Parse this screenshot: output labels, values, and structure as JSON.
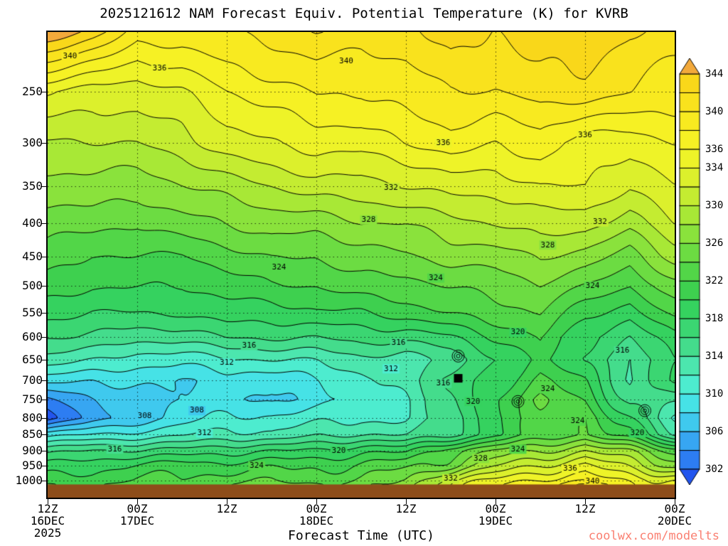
{
  "title": "2025121612 NAM Forecast Equiv. Potential Temperature (K) for KVRB",
  "watermark": {
    "text": "coolwx.com/modelts",
    "color": "#fa8072"
  },
  "axes": {
    "x_title": "Forecast Time (UTC)",
    "x_ticks": [
      {
        "z": "12Z",
        "date": "16DEC",
        "year": "2025"
      },
      {
        "z": "00Z",
        "date": "17DEC"
      },
      {
        "z": "12Z"
      },
      {
        "z": "00Z",
        "date": "18DEC"
      },
      {
        "z": "12Z"
      },
      {
        "z": "00Z",
        "date": "19DEC"
      },
      {
        "z": "12Z"
      },
      {
        "z": "00Z",
        "date": "20DEC"
      }
    ],
    "y_ticks": [
      250,
      300,
      350,
      400,
      450,
      500,
      550,
      600,
      650,
      700,
      750,
      800,
      850,
      900,
      950,
      1000
    ]
  },
  "chart_data": {
    "type": "heatmap",
    "subtype": "filled-contour-cross-section",
    "title": "2025121612 NAM Forecast Equiv. Potential Temperature (K) for KVRB",
    "xlabel": "Forecast Time (UTC)",
    "ylabel": "",
    "units": "K",
    "hours_span": 84,
    "x_hours": [
      0,
      6,
      12,
      18,
      24,
      30,
      36,
      42,
      48,
      54,
      60,
      66,
      72,
      78,
      84
    ],
    "pressures": [
      202,
      250,
      300,
      350,
      400,
      450,
      500,
      550,
      600,
      650,
      700,
      750,
      800,
      850,
      900,
      950,
      1000,
      1015
    ],
    "p_top": 202,
    "p_bot": 1064,
    "surface_pressure": 1015,
    "terrain_color": "#8e4d1a",
    "values": [
      [
        346,
        343,
        339,
        339,
        340,
        341,
        342,
        341,
        341,
        343,
        342,
        343,
        344,
        342,
        341
      ],
      [
        334,
        333,
        333,
        334,
        336,
        337,
        338,
        338,
        339,
        340,
        340,
        341,
        341,
        340,
        339
      ],
      [
        330,
        330,
        330,
        331,
        333,
        334,
        335,
        335,
        336,
        337,
        336,
        337,
        335,
        335,
        336
      ],
      [
        327,
        327,
        327,
        328,
        329,
        330,
        331,
        331,
        332,
        333,
        333,
        334,
        334,
        332,
        334
      ],
      [
        325,
        325,
        324,
        325,
        326,
        327,
        327,
        328,
        328,
        329,
        330,
        331,
        331,
        329,
        332
      ],
      [
        323,
        322,
        322,
        322,
        323,
        324,
        324,
        325,
        326,
        327,
        327,
        328,
        327,
        325,
        329
      ],
      [
        321,
        320,
        320,
        320,
        321,
        322,
        322,
        323,
        323,
        324,
        325,
        326,
        324,
        322,
        325
      ],
      [
        319,
        318,
        318,
        318,
        319,
        319,
        320,
        320,
        321,
        322,
        323,
        324,
        321,
        319,
        323
      ],
      [
        316,
        316,
        315,
        315,
        316,
        316,
        316,
        317,
        317,
        318,
        320,
        322,
        318,
        316,
        320
      ],
      [
        313,
        312,
        311,
        311,
        312,
        312,
        312,
        313,
        313,
        315,
        318,
        321,
        317,
        314,
        318
      ],
      [
        309,
        308,
        308,
        308,
        309,
        309,
        310,
        311,
        313,
        316,
        319,
        323,
        320,
        314,
        318
      ],
      [
        304,
        306,
        307,
        308,
        308,
        308,
        309,
        311,
        312,
        315,
        320,
        324,
        322,
        316,
        314
      ],
      [
        301,
        305,
        307,
        309,
        310,
        310,
        311,
        312,
        312,
        315,
        320,
        322,
        324,
        318,
        312
      ],
      [
        309,
        310,
        311,
        312,
        313,
        312,
        313,
        314,
        314,
        316,
        320,
        322,
        324,
        320,
        314
      ],
      [
        315,
        316,
        316,
        317,
        318,
        318,
        318,
        319,
        319,
        324,
        327,
        328,
        330,
        327,
        323
      ],
      [
        319,
        319,
        320,
        321,
        321,
        322,
        322,
        322,
        323,
        325,
        330,
        333,
        335,
        331,
        327
      ],
      [
        321,
        321,
        322,
        322,
        323,
        324,
        324,
        324,
        326,
        331,
        334,
        337,
        338,
        336,
        334
      ],
      [
        322,
        322,
        323,
        323,
        324,
        325,
        325,
        325,
        327,
        332,
        335,
        338,
        340,
        337,
        335
      ]
    ],
    "contour_interval": 2,
    "contour_min": 302,
    "contour_max": 344,
    "labeled_levels": [
      308,
      312,
      316,
      320,
      324,
      328,
      332,
      336,
      340
    ],
    "contour_labels": [
      {
        "v": 340,
        "t": 3,
        "p": 220
      },
      {
        "v": 340,
        "t": 40,
        "p": 224
      },
      {
        "v": 340,
        "t": 73,
        "p": 1005
      },
      {
        "v": 336,
        "t": 15,
        "p": 230
      },
      {
        "v": 336,
        "t": 53,
        "p": 300
      },
      {
        "v": 336,
        "t": 72,
        "p": 292
      },
      {
        "v": 336,
        "t": 70,
        "p": 960
      },
      {
        "v": 332,
        "t": 46,
        "p": 352
      },
      {
        "v": 332,
        "t": 74,
        "p": 398
      },
      {
        "v": 332,
        "t": 54,
        "p": 995
      },
      {
        "v": 328,
        "t": 43,
        "p": 395
      },
      {
        "v": 328,
        "t": 67,
        "p": 432
      },
      {
        "v": 328,
        "t": 58,
        "p": 925
      },
      {
        "v": 324,
        "t": 31,
        "p": 468
      },
      {
        "v": 324,
        "t": 52,
        "p": 486
      },
      {
        "v": 324,
        "t": 73,
        "p": 500
      },
      {
        "v": 324,
        "t": 67,
        "p": 722
      },
      {
        "v": 324,
        "t": 71,
        "p": 810
      },
      {
        "v": 324,
        "t": 63,
        "p": 895
      },
      {
        "v": 324,
        "t": 28,
        "p": 950
      },
      {
        "v": 320,
        "t": 57,
        "p": 755
      },
      {
        "v": 320,
        "t": 79,
        "p": 845
      },
      {
        "v": 320,
        "t": 39,
        "p": 900
      },
      {
        "v": 320,
        "t": 63,
        "p": 590
      },
      {
        "v": 316,
        "t": 27,
        "p": 618
      },
      {
        "v": 316,
        "t": 47,
        "p": 613
      },
      {
        "v": 316,
        "t": 77,
        "p": 630
      },
      {
        "v": 316,
        "t": 53,
        "p": 708
      },
      {
        "v": 316,
        "t": 9,
        "p": 895
      },
      {
        "v": 312,
        "t": 24,
        "p": 658
      },
      {
        "v": 312,
        "t": 46,
        "p": 672
      },
      {
        "v": 312,
        "t": 21,
        "p": 845
      },
      {
        "v": 308,
        "t": 20,
        "p": 780
      },
      {
        "v": 308,
        "t": 13,
        "p": 795
      }
    ],
    "band_start": 300,
    "band_step": 2,
    "band_colors": [
      "#2255ee",
      "#2d7df2",
      "#37a6f2",
      "#3fc9ee",
      "#46e2e6",
      "#4deccf",
      "#4ce6ae",
      "#44dc8c",
      "#3bd672",
      "#35d25f",
      "#3ed04f",
      "#52d648",
      "#6cdc42",
      "#8ae23c",
      "#a8e836",
      "#c4ec31",
      "#dcf02c",
      "#eef328",
      "#f6f124",
      "#f8ea20",
      "#f9e21d",
      "#f9d71a",
      "#f2a93b"
    ],
    "colorbar": {
      "min": 302,
      "max": 344,
      "tick_labels": [
        344,
        340,
        336,
        334,
        330,
        326,
        322,
        318,
        314,
        310,
        306,
        302
      ]
    },
    "annotations": [
      {
        "type": "bullseye",
        "t": 55,
        "p": 642
      },
      {
        "type": "square",
        "t": 55,
        "p": 695
      },
      {
        "type": "bullseye",
        "t": 63,
        "p": 755
      },
      {
        "type": "bullseye",
        "t": 80,
        "p": 780
      }
    ]
  }
}
